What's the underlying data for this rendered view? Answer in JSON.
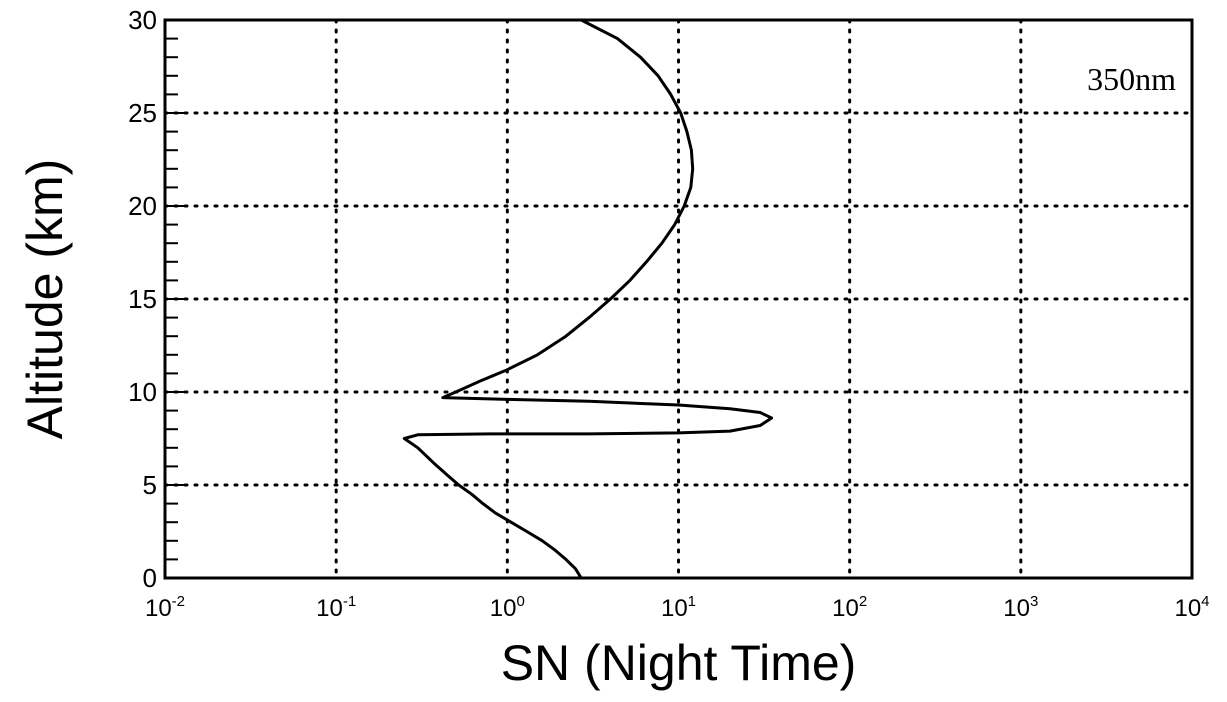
{
  "chart_data": {
    "type": "line",
    "title": "",
    "xlabel": "SN (Night Time)",
    "ylabel": "Altitude (km)",
    "annotation": "350nm",
    "xscale": "log",
    "xlim": [
      0.01,
      10000
    ],
    "ylim": [
      0,
      30
    ],
    "grid": true,
    "legend": "none",
    "x_ticks": [
      {
        "base": "10",
        "exp": "-2",
        "value": 0.01
      },
      {
        "base": "10",
        "exp": "-1",
        "value": 0.1
      },
      {
        "base": "10",
        "exp": "0",
        "value": 1
      },
      {
        "base": "10",
        "exp": "1",
        "value": 10
      },
      {
        "base": "10",
        "exp": "2",
        "value": 100
      },
      {
        "base": "10",
        "exp": "3",
        "value": 1000
      },
      {
        "base": "10",
        "exp": "4",
        "value": 10000
      }
    ],
    "y_ticks": [
      0,
      5,
      10,
      15,
      20,
      25,
      30
    ],
    "series": [
      {
        "color": "#000000",
        "points": [
          [
            2.7,
            0
          ],
          [
            2.5,
            0.5
          ],
          [
            2.2,
            1
          ],
          [
            1.9,
            1.5
          ],
          [
            1.6,
            2
          ],
          [
            1.3,
            2.5
          ],
          [
            1.05,
            3
          ],
          [
            0.85,
            3.5
          ],
          [
            0.72,
            4
          ],
          [
            0.62,
            4.5
          ],
          [
            0.52,
            5
          ],
          [
            0.45,
            5.5
          ],
          [
            0.37,
            6.2
          ],
          [
            0.3,
            7
          ],
          [
            0.25,
            7.5
          ],
          [
            0.3,
            7.7
          ],
          [
            0.8,
            7.75
          ],
          [
            3,
            7.75
          ],
          [
            10,
            7.8
          ],
          [
            20,
            7.9
          ],
          [
            30,
            8.2
          ],
          [
            35,
            8.6
          ],
          [
            30,
            8.9
          ],
          [
            20,
            9.1
          ],
          [
            10,
            9.3
          ],
          [
            3,
            9.5
          ],
          [
            1,
            9.6
          ],
          [
            0.42,
            9.7
          ],
          [
            0.5,
            10
          ],
          [
            0.7,
            10.6
          ],
          [
            1,
            11.2
          ],
          [
            1.5,
            12
          ],
          [
            2.2,
            13
          ],
          [
            3,
            14
          ],
          [
            4,
            15
          ],
          [
            5.2,
            16
          ],
          [
            6.5,
            17
          ],
          [
            8,
            18
          ],
          [
            9.5,
            19
          ],
          [
            10.8,
            20
          ],
          [
            11.8,
            21
          ],
          [
            12.1,
            22
          ],
          [
            11.9,
            23
          ],
          [
            11.2,
            24
          ],
          [
            10.3,
            25
          ],
          [
            9,
            26
          ],
          [
            7.6,
            27
          ],
          [
            6,
            28
          ],
          [
            4.4,
            29
          ],
          [
            2.7,
            30
          ]
        ]
      }
    ]
  }
}
